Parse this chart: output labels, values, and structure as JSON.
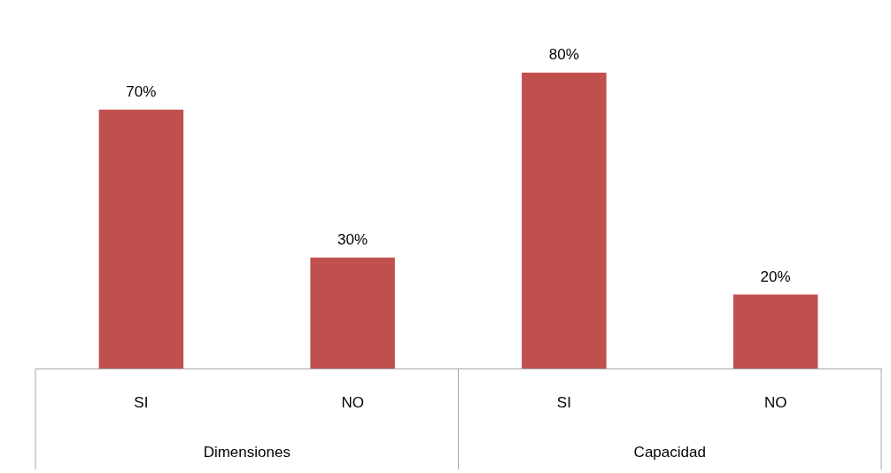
{
  "chart_data": {
    "type": "bar",
    "categories": [
      "SI",
      "NO",
      "SI",
      "NO"
    ],
    "values": [
      70,
      30,
      80,
      20
    ],
    "value_labels": [
      "70%",
      "30%",
      "80%",
      "20%"
    ],
    "color": "#c0504d",
    "annotations": [
      "Dimensiones",
      "Capacidad"
    ]
  }
}
